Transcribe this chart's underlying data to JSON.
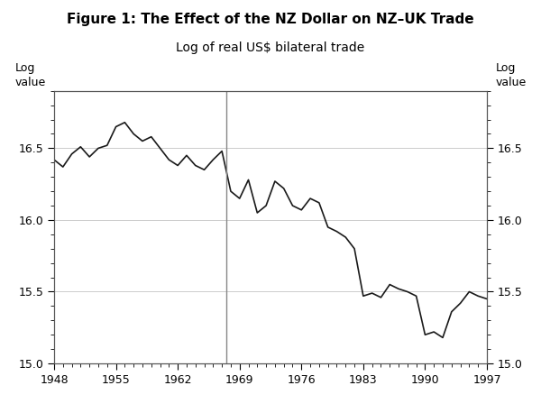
{
  "title": "Figure 1: The Effect of the NZ Dollar on NZ–UK Trade",
  "subtitle": "Log of real US$ bilateral trade",
  "ylabel_left": "Log\nvalue",
  "ylabel_right": "Log\nvalue",
  "xlim": [
    1948,
    1997
  ],
  "ylim": [
    15.0,
    16.9
  ],
  "yticks": [
    15.0,
    15.5,
    16.0,
    16.5
  ],
  "xticks": [
    1948,
    1955,
    1962,
    1969,
    1976,
    1983,
    1990,
    1997
  ],
  "vline_x": 1967.5,
  "background_color": "#ffffff",
  "plot_background": "#ffffff",
  "line_color": "#1a1a1a",
  "vline_color": "#888888",
  "grid_color": "#cccccc",
  "years": [
    1948,
    1949,
    1950,
    1951,
    1952,
    1953,
    1954,
    1955,
    1956,
    1957,
    1958,
    1959,
    1960,
    1961,
    1962,
    1963,
    1964,
    1965,
    1966,
    1967,
    1968,
    1969,
    1970,
    1971,
    1972,
    1973,
    1974,
    1975,
    1976,
    1977,
    1978,
    1979,
    1980,
    1981,
    1982,
    1983,
    1984,
    1985,
    1986,
    1987,
    1988,
    1989,
    1990,
    1991,
    1992,
    1993,
    1994,
    1995,
    1996,
    1997
  ],
  "values": [
    16.42,
    16.37,
    16.46,
    16.51,
    16.44,
    16.5,
    16.52,
    16.65,
    16.68,
    16.6,
    16.55,
    16.58,
    16.5,
    16.42,
    16.38,
    16.45,
    16.38,
    16.35,
    16.42,
    16.48,
    16.2,
    16.15,
    16.28,
    16.05,
    16.1,
    16.27,
    16.22,
    16.1,
    16.07,
    16.15,
    16.12,
    15.95,
    15.92,
    15.88,
    15.8,
    15.47,
    15.49,
    15.46,
    15.55,
    15.52,
    15.5,
    15.47,
    15.2,
    15.22,
    15.18,
    15.36,
    15.42,
    15.5,
    15.47,
    15.45
  ]
}
